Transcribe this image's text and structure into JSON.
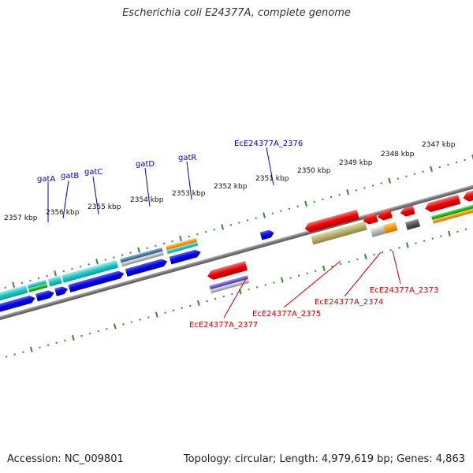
{
  "title": "Escherichia coli E24377A, complete genome",
  "footer": {
    "accession": "Accession: NC_009801",
    "summary": "Topology: circular; Length: 4,979,619 bp; Genes: 4,863"
  },
  "scale_labels": [
    "2357 kbp",
    "2356 kbp",
    "2355 kbp",
    "2354 kbp",
    "2353 kbp",
    "2352 kbp",
    "2351 kbp",
    "2350 kbp",
    "2349 kbp",
    "2348 kbp",
    "2347 kbp"
  ],
  "forward_gene_labels": [
    "gatA",
    "gatB",
    "gatC",
    "gatD",
    "gatR",
    "EcE24377A_2376"
  ],
  "reverse_gene_labels": [
    "EcE24377A_2377",
    "EcE24377A_2375",
    "EcE24377A_2374",
    "EcE24377A_2373"
  ],
  "colors": {
    "forward_label": "#0000cc",
    "reverse_label": "#cc0000",
    "tick": "#2e8b2e",
    "backbone": "#808080"
  }
}
